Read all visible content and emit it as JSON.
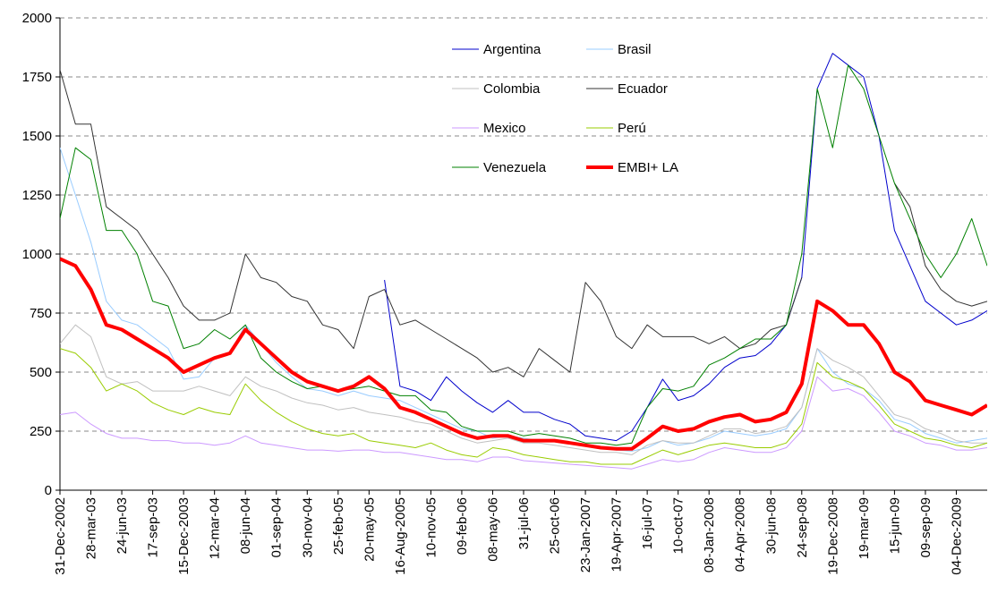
{
  "chart_data": {
    "type": "line",
    "categories": [
      "31-Dec-2002",
      null,
      "28-mar-03",
      null,
      "24-jun-03",
      null,
      "17-sep-03",
      null,
      "15-Dec-2003",
      null,
      "12-mar-04",
      null,
      "08-jun-04",
      null,
      "01-sep-04",
      null,
      "30-nov-04",
      null,
      "25-feb-05",
      null,
      "20-may-05",
      null,
      "16-Aug-2005",
      null,
      "10-nov-05",
      null,
      "09-feb-06",
      null,
      "08-may-06",
      null,
      "31-jul-06",
      null,
      "25-oct-06",
      null,
      "23-Jan-2007",
      null,
      "19-Apr-2007",
      null,
      "16-jul-07",
      null,
      "10-oct-07",
      null,
      "08-Jan-2008",
      null,
      "04-Apr-2008",
      null,
      "30-jun-08",
      null,
      "24-sep-08",
      null,
      "19-Dec-2008",
      null,
      "19-mar-09",
      null,
      "15-jun-09",
      null,
      "09-sep-09",
      null,
      "04-Dec-2009",
      null,
      null
    ],
    "ylim": [
      0,
      2000
    ],
    "yticks": [
      0,
      250,
      500,
      750,
      1000,
      1250,
      1500,
      1750,
      2000
    ],
    "grid": true,
    "series": [
      {
        "name": "Argentina",
        "color": "#0000cc",
        "line_width": 1,
        "values": [
          null,
          null,
          null,
          null,
          null,
          null,
          null,
          null,
          null,
          null,
          null,
          null,
          null,
          null,
          null,
          null,
          null,
          null,
          null,
          null,
          null,
          890,
          440,
          420,
          380,
          480,
          420,
          370,
          330,
          380,
          330,
          330,
          300,
          280,
          230,
          220,
          210,
          250,
          350,
          470,
          380,
          400,
          450,
          520,
          560,
          570,
          620,
          700,
          900,
          1700,
          1850,
          1800,
          1750,
          1500,
          1100,
          950,
          800,
          750,
          700,
          720,
          760
        ]
      },
      {
        "name": "Brasil",
        "color": "#99ccff",
        "line_width": 1,
        "values": [
          1450,
          1250,
          1050,
          800,
          720,
          700,
          650,
          600,
          470,
          480,
          560,
          580,
          700,
          620,
          540,
          480,
          430,
          420,
          400,
          420,
          400,
          390,
          380,
          350,
          320,
          290,
          260,
          250,
          220,
          230,
          220,
          210,
          210,
          200,
          190,
          180,
          170,
          165,
          180,
          210,
          190,
          200,
          220,
          250,
          240,
          230,
          240,
          260,
          350,
          600,
          500,
          450,
          430,
          380,
          300,
          280,
          240,
          220,
          200,
          210,
          220
        ]
      },
      {
        "name": "Colombia",
        "color": "#c0c0c0",
        "line_width": 1,
        "values": [
          620,
          700,
          650,
          480,
          450,
          460,
          420,
          420,
          420,
          440,
          420,
          400,
          480,
          440,
          420,
          390,
          370,
          360,
          340,
          350,
          330,
          320,
          310,
          290,
          280,
          250,
          220,
          200,
          210,
          220,
          200,
          200,
          190,
          180,
          170,
          160,
          160,
          150,
          190,
          210,
          200,
          200,
          230,
          260,
          260,
          240,
          250,
          270,
          350,
          600,
          550,
          520,
          480,
          400,
          320,
          300,
          260,
          240,
          210,
          200,
          200
        ]
      },
      {
        "name": "Ecuador",
        "color": "#333333",
        "line_width": 1,
        "values": [
          1780,
          1550,
          1550,
          1200,
          1150,
          1100,
          1000,
          900,
          780,
          720,
          720,
          750,
          1000,
          900,
          880,
          820,
          800,
          700,
          680,
          600,
          820,
          850,
          700,
          720,
          680,
          640,
          600,
          560,
          500,
          520,
          480,
          600,
          550,
          500,
          880,
          800,
          650,
          600,
          700,
          650,
          650,
          650,
          620,
          650,
          600,
          620,
          680,
          700,
          900,
          null,
          null,
          null,
          null,
          null,
          1300,
          1200,
          950,
          850,
          800,
          780,
          800
        ]
      },
      {
        "name": "Mexico",
        "color": "#cc99ff",
        "line_width": 1,
        "values": [
          320,
          330,
          280,
          240,
          220,
          220,
          210,
          210,
          200,
          200,
          190,
          200,
          230,
          200,
          190,
          180,
          170,
          170,
          165,
          170,
          170,
          160,
          160,
          150,
          140,
          130,
          130,
          120,
          140,
          140,
          125,
          120,
          115,
          110,
          105,
          100,
          95,
          90,
          110,
          130,
          120,
          130,
          160,
          180,
          170,
          160,
          160,
          180,
          250,
          480,
          420,
          430,
          400,
          330,
          250,
          230,
          200,
          190,
          170,
          170,
          180
        ]
      },
      {
        "name": "Perú",
        "color": "#99cc00",
        "line_width": 1,
        "values": [
          600,
          580,
          520,
          420,
          450,
          420,
          370,
          340,
          320,
          350,
          330,
          320,
          450,
          380,
          330,
          290,
          260,
          240,
          230,
          240,
          210,
          200,
          190,
          180,
          200,
          170,
          150,
          140,
          180,
          170,
          150,
          140,
          130,
          120,
          120,
          110,
          110,
          110,
          140,
          170,
          150,
          170,
          190,
          200,
          190,
          180,
          180,
          200,
          280,
          540,
          480,
          460,
          430,
          360,
          280,
          250,
          220,
          210,
          190,
          180,
          200
        ]
      },
      {
        "name": "Venezuela",
        "color": "#008000",
        "line_width": 1,
        "values": [
          1150,
          1450,
          1400,
          1100,
          1100,
          1000,
          800,
          780,
          600,
          620,
          680,
          640,
          700,
          560,
          500,
          460,
          430,
          440,
          420,
          430,
          440,
          420,
          400,
          400,
          340,
          330,
          270,
          250,
          250,
          250,
          230,
          240,
          230,
          220,
          200,
          200,
          190,
          200,
          350,
          430,
          420,
          440,
          530,
          560,
          600,
          640,
          640,
          700,
          1000,
          1700,
          1450,
          1800,
          1700,
          1500,
          1300,
          1150,
          1000,
          900,
          1000,
          1150,
          950
        ]
      },
      {
        "name": "EMBI+ LA",
        "color": "#ff0000",
        "line_width": 4,
        "values": [
          980,
          950,
          850,
          700,
          680,
          640,
          600,
          560,
          500,
          530,
          560,
          580,
          680,
          620,
          560,
          500,
          460,
          440,
          420,
          440,
          480,
          430,
          350,
          330,
          300,
          270,
          240,
          220,
          230,
          230,
          210,
          210,
          210,
          200,
          190,
          180,
          175,
          175,
          220,
          270,
          250,
          260,
          290,
          310,
          320,
          290,
          300,
          330,
          450,
          800,
          760,
          700,
          700,
          620,
          500,
          460,
          380,
          360,
          340,
          320,
          360
        ]
      }
    ]
  }
}
